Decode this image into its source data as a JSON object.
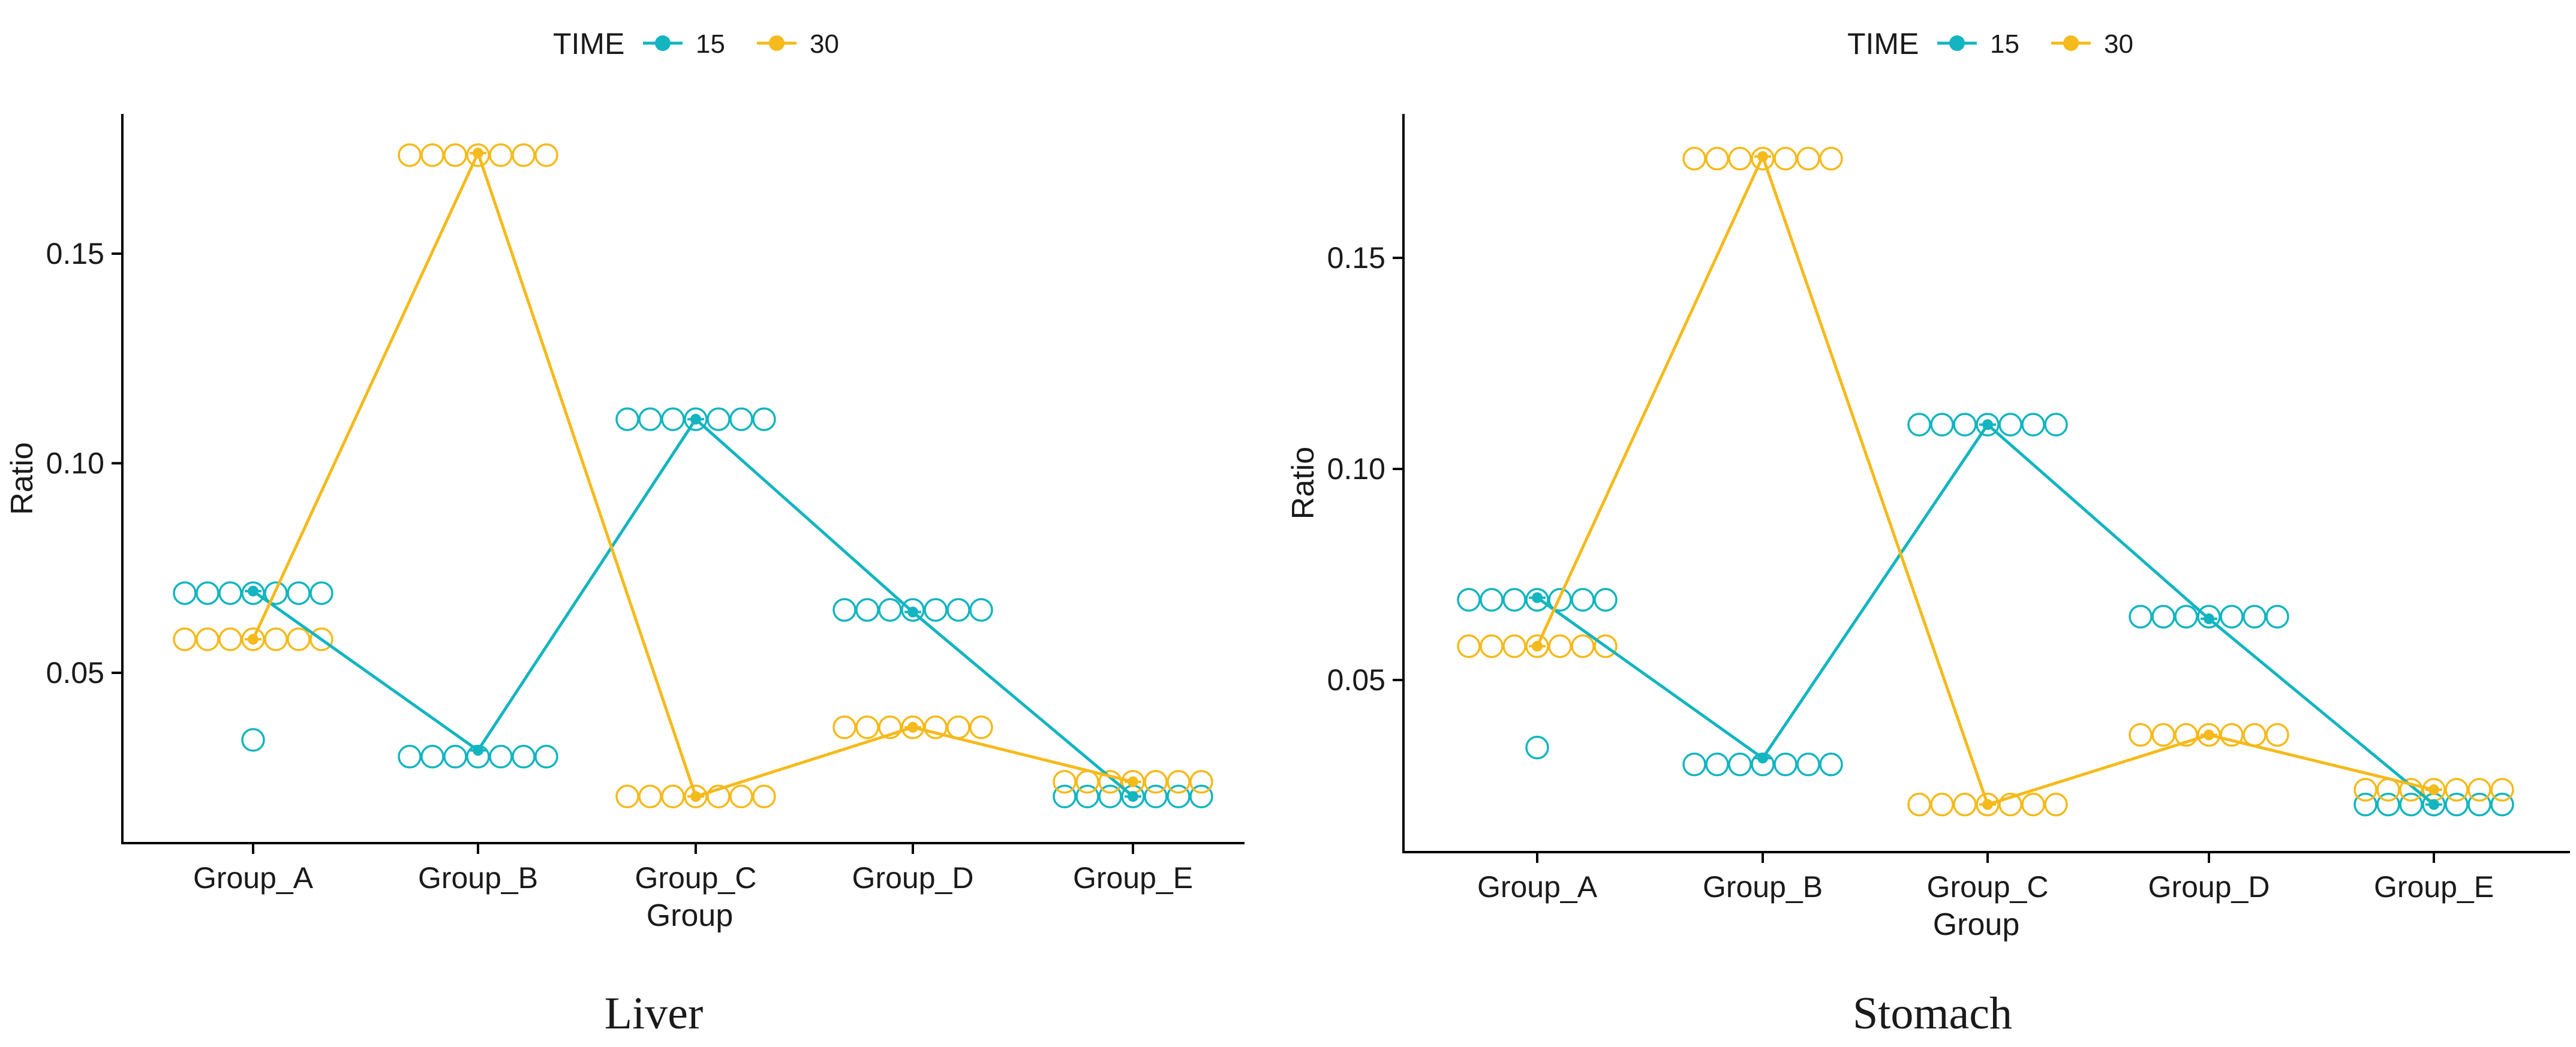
{
  "panels": [
    {
      "caption": "Liver",
      "chart_data": {
        "type": "line",
        "xlabel": "Group",
        "ylabel": "Ratio",
        "categories": [
          "Group_A",
          "Group_B",
          "Group_C",
          "Group_D",
          "Group_E"
        ],
        "ylim": [
          0.013,
          0.184
        ],
        "yticks": [
          0.05,
          0.1,
          0.15
        ],
        "ytick_labels": [
          "0.05",
          "0.10",
          "0.15"
        ],
        "legend": {
          "title": "TIME",
          "position": "top",
          "entries": [
            "15",
            "30"
          ]
        },
        "series": [
          {
            "name": "15",
            "color": "#12B5C0",
            "values": [
              0.0695,
              0.0315,
              0.1105,
              0.0645,
              0.0205
            ],
            "points": [
              0.069,
              0.03,
              0.1105,
              0.065,
              0.0205
            ],
            "extra_points": [
              0.034,
              null,
              null,
              null,
              null
            ]
          },
          {
            "name": "30",
            "color": "#F5BA1B",
            "values": [
              0.058,
              0.174,
              0.0205,
              0.037,
              0.024
            ],
            "points": [
              0.058,
              0.1735,
              0.0205,
              0.037,
              0.024
            ],
            "extra_points": [
              null,
              null,
              null,
              null,
              null
            ]
          }
        ]
      }
    },
    {
      "caption": "Stomach",
      "chart_data": {
        "type": "line",
        "xlabel": "Group",
        "ylabel": "Ratio",
        "categories": [
          "Group_A",
          "Group_B",
          "Group_C",
          "Group_D",
          "Group_E"
        ],
        "ylim": [
          0.013,
          0.184
        ],
        "yticks": [
          0.05,
          0.1,
          0.15
        ],
        "ytick_labels": [
          "0.05",
          "0.10",
          "0.15"
        ],
        "legend": {
          "title": "TIME",
          "position": "top",
          "entries": [
            "15",
            "30"
          ]
        },
        "series": [
          {
            "name": "15",
            "color": "#12B5C0",
            "values": [
              0.0695,
              0.0315,
              0.1105,
              0.0645,
              0.0205
            ],
            "points": [
              0.069,
              0.03,
              0.1105,
              0.065,
              0.0205
            ],
            "extra_points": [
              0.034,
              null,
              null,
              null,
              null
            ]
          },
          {
            "name": "30",
            "color": "#F5BA1B",
            "values": [
              0.058,
              0.174,
              0.0205,
              0.037,
              0.024
            ],
            "points": [
              0.058,
              0.1735,
              0.0205,
              0.037,
              0.024
            ],
            "extra_points": [
              null,
              null,
              null,
              null,
              null
            ]
          }
        ]
      }
    }
  ]
}
